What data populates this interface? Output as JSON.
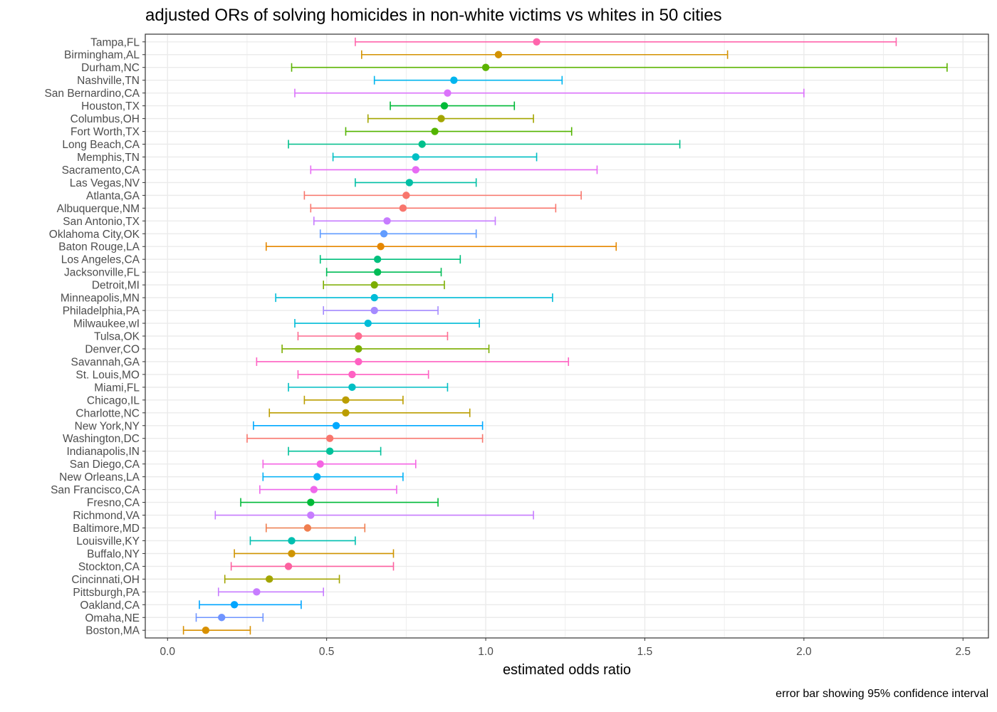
{
  "chart_data": {
    "type": "scatter",
    "title": "adjusted ORs of solving homicides in non-white victims vs whites in 50 cities",
    "xlabel": "estimated odds ratio",
    "ylabel": "",
    "caption": "error bar showing 95% confidence interval",
    "xlim": [
      -0.07,
      2.58
    ],
    "xticks": [
      "0.0",
      "0.5",
      "1.0",
      "1.5",
      "2.0",
      "2.5"
    ],
    "grid": true,
    "legend": "none",
    "points": [
      {
        "city": "Tampa,FL",
        "estimate": 1.16,
        "lower": 0.59,
        "upper": 2.29,
        "color": "#FF65AC"
      },
      {
        "city": "Birmingham,AL",
        "estimate": 1.04,
        "lower": 0.61,
        "upper": 1.76,
        "color": "#D39200"
      },
      {
        "city": "Durham,NC",
        "estimate": 1.0,
        "lower": 0.39,
        "upper": 2.45,
        "color": "#5BB300"
      },
      {
        "city": "Nashville,TN",
        "estimate": 0.9,
        "lower": 0.65,
        "upper": 1.24,
        "color": "#00B5EE"
      },
      {
        "city": "San Bernardino,CA",
        "estimate": 0.88,
        "lower": 0.4,
        "upper": 2.0,
        "color": "#DB72FB"
      },
      {
        "city": "Houston,TX",
        "estimate": 0.87,
        "lower": 0.7,
        "upper": 1.09,
        "color": "#00BA38"
      },
      {
        "city": "Columbus,OH",
        "estimate": 0.86,
        "lower": 0.63,
        "upper": 1.15,
        "color": "#A3A500"
      },
      {
        "city": "Fort Worth,TX",
        "estimate": 0.84,
        "lower": 0.56,
        "upper": 1.27,
        "color": "#53B400"
      },
      {
        "city": "Long Beach,CA",
        "estimate": 0.8,
        "lower": 0.38,
        "upper": 1.61,
        "color": "#00C08B"
      },
      {
        "city": "Memphis,TN",
        "estimate": 0.78,
        "lower": 0.52,
        "upper": 1.16,
        "color": "#00BFC4"
      },
      {
        "city": "Sacramento,CA",
        "estimate": 0.78,
        "lower": 0.45,
        "upper": 1.35,
        "color": "#E76BF3"
      },
      {
        "city": "Las Vegas,NV",
        "estimate": 0.76,
        "lower": 0.59,
        "upper": 0.97,
        "color": "#00BFA5"
      },
      {
        "city": "Atlanta,GA",
        "estimate": 0.75,
        "lower": 0.43,
        "upper": 1.3,
        "color": "#F8766D"
      },
      {
        "city": "Albuquerque,NM",
        "estimate": 0.74,
        "lower": 0.45,
        "upper": 1.22,
        "color": "#F8766D"
      },
      {
        "city": "San Antonio,TX",
        "estimate": 0.69,
        "lower": 0.46,
        "upper": 1.03,
        "color": "#C77CFF"
      },
      {
        "city": "Oklahoma City,OK",
        "estimate": 0.68,
        "lower": 0.48,
        "upper": 0.97,
        "color": "#619CFF"
      },
      {
        "city": "Baton Rouge,LA",
        "estimate": 0.67,
        "lower": 0.31,
        "upper": 1.41,
        "color": "#E58700"
      },
      {
        "city": "Los Angeles,CA",
        "estimate": 0.66,
        "lower": 0.48,
        "upper": 0.92,
        "color": "#00BF7D"
      },
      {
        "city": "Jacksonville,FL",
        "estimate": 0.66,
        "lower": 0.5,
        "upper": 0.86,
        "color": "#00BC56"
      },
      {
        "city": "Detroit,MI",
        "estimate": 0.65,
        "lower": 0.49,
        "upper": 0.87,
        "color": "#7CAE00"
      },
      {
        "city": "Minneapolis,MN",
        "estimate": 0.65,
        "lower": 0.34,
        "upper": 1.21,
        "color": "#00BCD8"
      },
      {
        "city": "Philadelphia,PA",
        "estimate": 0.65,
        "lower": 0.49,
        "upper": 0.85,
        "color": "#A58AFF"
      },
      {
        "city": "Milwaukee,wI",
        "estimate": 0.63,
        "lower": 0.4,
        "upper": 0.98,
        "color": "#00BCD8"
      },
      {
        "city": "Tulsa,OK",
        "estimate": 0.6,
        "lower": 0.41,
        "upper": 0.88,
        "color": "#FF6C91"
      },
      {
        "city": "Denver,CO",
        "estimate": 0.6,
        "lower": 0.36,
        "upper": 1.01,
        "color": "#7CAE00"
      },
      {
        "city": "Savannah,GA",
        "estimate": 0.6,
        "lower": 0.28,
        "upper": 1.26,
        "color": "#FF61C3"
      },
      {
        "city": "St. Louis,MO",
        "estimate": 0.58,
        "lower": 0.41,
        "upper": 0.82,
        "color": "#FF61C3"
      },
      {
        "city": "Miami,FL",
        "estimate": 0.58,
        "lower": 0.38,
        "upper": 0.88,
        "color": "#00BFC4"
      },
      {
        "city": "Chicago,IL",
        "estimate": 0.56,
        "lower": 0.43,
        "upper": 0.74,
        "color": "#BB9D00"
      },
      {
        "city": "Charlotte,NC",
        "estimate": 0.56,
        "lower": 0.32,
        "upper": 0.95,
        "color": "#BB9D00"
      },
      {
        "city": "New York,NY",
        "estimate": 0.53,
        "lower": 0.27,
        "upper": 0.99,
        "color": "#00A9FF"
      },
      {
        "city": "Washington,DC",
        "estimate": 0.51,
        "lower": 0.25,
        "upper": 0.99,
        "color": "#F8766D"
      },
      {
        "city": "Indianapolis,IN",
        "estimate": 0.51,
        "lower": 0.38,
        "upper": 0.67,
        "color": "#00C19A"
      },
      {
        "city": "San Diego,CA",
        "estimate": 0.48,
        "lower": 0.3,
        "upper": 0.78,
        "color": "#F564E3"
      },
      {
        "city": "New Orleans,LA",
        "estimate": 0.47,
        "lower": 0.3,
        "upper": 0.74,
        "color": "#00B0F6"
      },
      {
        "city": "San Francisco,CA",
        "estimate": 0.46,
        "lower": 0.29,
        "upper": 0.72,
        "color": "#EF67EB"
      },
      {
        "city": "Fresno,CA",
        "estimate": 0.45,
        "lower": 0.23,
        "upper": 0.85,
        "color": "#00BA38"
      },
      {
        "city": "Richmond,VA",
        "estimate": 0.45,
        "lower": 0.15,
        "upper": 1.15,
        "color": "#C77CFF"
      },
      {
        "city": "Baltimore,MD",
        "estimate": 0.44,
        "lower": 0.31,
        "upper": 0.62,
        "color": "#F07E4F"
      },
      {
        "city": "Louisville,KY",
        "estimate": 0.39,
        "lower": 0.26,
        "upper": 0.59,
        "color": "#00BFB0"
      },
      {
        "city": "Buffalo,NY",
        "estimate": 0.39,
        "lower": 0.21,
        "upper": 0.71,
        "color": "#CF9400"
      },
      {
        "city": "Stockton,CA",
        "estimate": 0.38,
        "lower": 0.2,
        "upper": 0.71,
        "color": "#FC61A0"
      },
      {
        "city": "Cincinnati,OH",
        "estimate": 0.32,
        "lower": 0.18,
        "upper": 0.54,
        "color": "#A3A500"
      },
      {
        "city": "Pittsburgh,PA",
        "estimate": 0.28,
        "lower": 0.16,
        "upper": 0.49,
        "color": "#C77CFF"
      },
      {
        "city": "Oakland,CA",
        "estimate": 0.21,
        "lower": 0.1,
        "upper": 0.42,
        "color": "#00A5FF"
      },
      {
        "city": "Omaha,NE",
        "estimate": 0.17,
        "lower": 0.09,
        "upper": 0.3,
        "color": "#6F94FF"
      },
      {
        "city": "Boston,MA",
        "estimate": 0.12,
        "lower": 0.05,
        "upper": 0.26,
        "color": "#D89000"
      }
    ]
  }
}
